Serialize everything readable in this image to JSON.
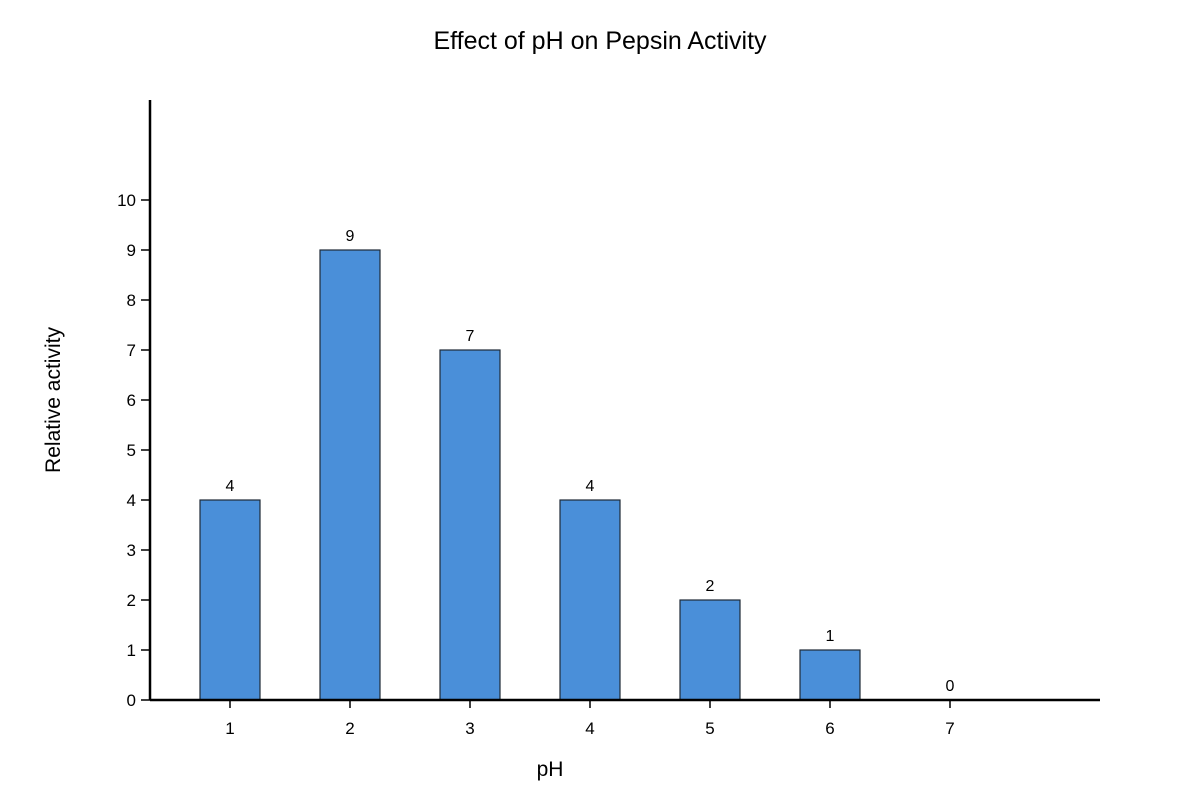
{
  "chart_data": {
    "type": "bar",
    "title": "Effect of pH on Pepsin Activity",
    "xlabel": "pH",
    "ylabel": "Relative activity",
    "categories": [
      "1",
      "2",
      "3",
      "4",
      "5",
      "6",
      "7"
    ],
    "values": [
      4,
      9,
      7,
      4,
      2,
      1,
      0
    ],
    "data_labels": [
      "4",
      "9",
      "7",
      "4",
      "2",
      "1",
      "0"
    ],
    "y_ticks": [
      0,
      1,
      2,
      3,
      4,
      5,
      6,
      7,
      8,
      9,
      10
    ],
    "ylim": [
      0,
      12
    ],
    "grid": false,
    "legend": "none",
    "colors": {
      "bar_fill": "#4a8fd9",
      "bar_stroke": "#1f2a36",
      "axis": "#000000"
    }
  }
}
